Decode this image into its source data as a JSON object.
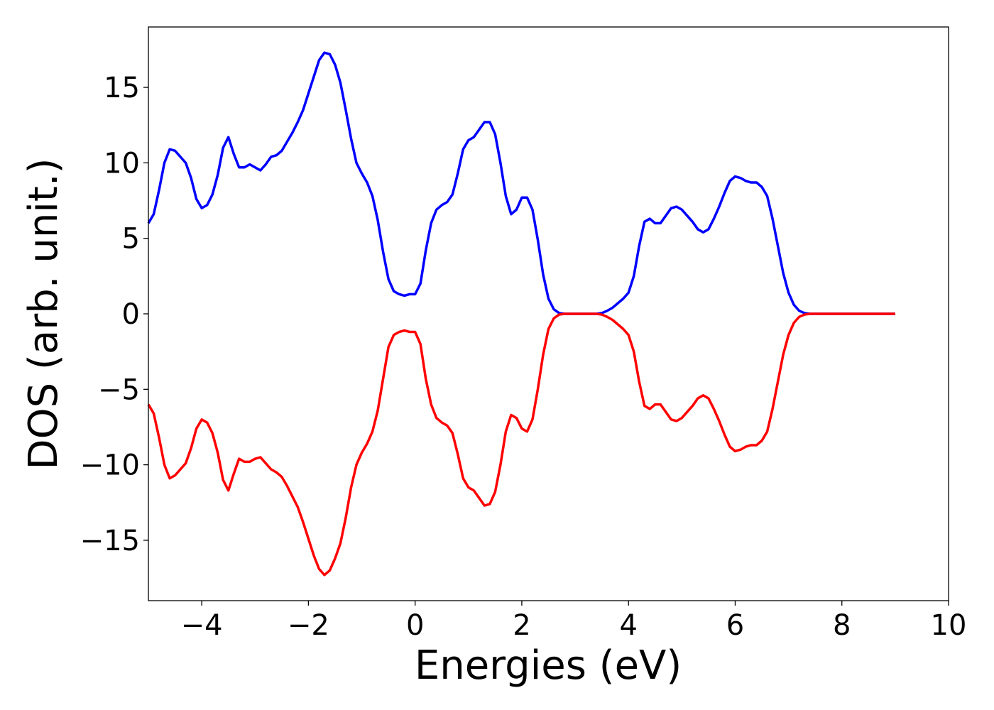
{
  "chart_data": {
    "type": "line",
    "title": "",
    "xlabel": "Energies (eV)",
    "ylabel": "DOS (arb. unit.)",
    "xlim": [
      -5,
      10
    ],
    "ylim": [
      -19,
      19
    ],
    "xticks": [
      -4,
      -2,
      0,
      2,
      4,
      6,
      8,
      10
    ],
    "xtick_labels": [
      "−4",
      "−2",
      "0",
      "2",
      "4",
      "6",
      "8",
      "10"
    ],
    "yticks": [
      -15,
      -10,
      -5,
      0,
      5,
      10,
      15
    ],
    "ytick_labels": [
      "−15",
      "−10",
      "−5",
      "0",
      "5",
      "10",
      "15"
    ],
    "grid": false,
    "legend": "none",
    "series": [
      {
        "color": "#0000ff",
        "x": [
          -5.0,
          -4.9,
          -4.8,
          -4.7,
          -4.6,
          -4.5,
          -4.4,
          -4.3,
          -4.2,
          -4.1,
          -4.0,
          -3.9,
          -3.8,
          -3.7,
          -3.6,
          -3.5,
          -3.4,
          -3.3,
          -3.2,
          -3.1,
          -3.0,
          -2.9,
          -2.8,
          -2.7,
          -2.6,
          -2.5,
          -2.4,
          -2.3,
          -2.2,
          -2.1,
          -2.0,
          -1.9,
          -1.8,
          -1.7,
          -1.6,
          -1.5,
          -1.4,
          -1.3,
          -1.2,
          -1.1,
          -1.0,
          -0.9,
          -0.8,
          -0.7,
          -0.6,
          -0.5,
          -0.4,
          -0.3,
          -0.2,
          -0.1,
          0.0,
          0.1,
          0.2,
          0.3,
          0.4,
          0.5,
          0.6,
          0.7,
          0.8,
          0.9,
          1.0,
          1.1,
          1.2,
          1.3,
          1.4,
          1.5,
          1.6,
          1.7,
          1.8,
          1.9,
          2.0,
          2.1,
          2.2,
          2.3,
          2.4,
          2.5,
          2.6,
          2.7,
          2.8,
          2.9,
          3.0,
          3.2,
          3.4,
          3.5,
          3.6,
          3.7,
          3.8,
          3.9,
          4.0,
          4.1,
          4.2,
          4.3,
          4.4,
          4.5,
          4.6,
          4.7,
          4.8,
          4.9,
          5.0,
          5.1,
          5.2,
          5.3,
          5.4,
          5.5,
          5.6,
          5.7,
          5.8,
          5.9,
          6.0,
          6.1,
          6.2,
          6.3,
          6.4,
          6.5,
          6.6,
          6.7,
          6.8,
          6.9,
          7.0,
          7.1,
          7.2,
          7.3,
          7.4,
          7.6,
          8.0,
          8.5,
          9.0
        ],
        "y": [
          6.0,
          6.6,
          8.2,
          10.0,
          10.9,
          10.8,
          10.4,
          10.0,
          9.0,
          7.6,
          7.0,
          7.2,
          7.9,
          9.2,
          11.0,
          11.7,
          10.6,
          9.7,
          9.7,
          9.9,
          9.7,
          9.5,
          9.9,
          10.4,
          10.5,
          10.8,
          11.4,
          12.0,
          12.7,
          13.5,
          14.6,
          15.7,
          16.8,
          17.3,
          17.2,
          16.5,
          15.3,
          13.5,
          11.6,
          10.0,
          9.3,
          8.7,
          7.8,
          6.2,
          4.1,
          2.3,
          1.5,
          1.3,
          1.2,
          1.3,
          1.3,
          2.0,
          4.2,
          6.0,
          6.9,
          7.2,
          7.4,
          7.9,
          9.3,
          10.9,
          11.5,
          11.7,
          12.2,
          12.7,
          12.7,
          11.9,
          10.0,
          7.8,
          6.6,
          6.9,
          7.7,
          7.7,
          6.9,
          4.9,
          2.6,
          1.0,
          0.3,
          0.05,
          0.0,
          0.0,
          0.0,
          0.0,
          0.0,
          0.05,
          0.2,
          0.4,
          0.7,
          1.0,
          1.4,
          2.5,
          4.5,
          6.1,
          6.3,
          6.0,
          6.0,
          6.5,
          7.0,
          7.1,
          6.9,
          6.5,
          6.1,
          5.6,
          5.4,
          5.6,
          6.3,
          7.1,
          8.0,
          8.8,
          9.1,
          9.0,
          8.8,
          8.7,
          8.7,
          8.4,
          7.8,
          6.3,
          4.5,
          2.7,
          1.4,
          0.6,
          0.2,
          0.05,
          0.0,
          0.0,
          0.0,
          0.0,
          0.0
        ]
      },
      {
        "color": "#ff0000",
        "x": [
          -5.0,
          -4.9,
          -4.8,
          -4.7,
          -4.6,
          -4.5,
          -4.4,
          -4.3,
          -4.2,
          -4.1,
          -4.0,
          -3.9,
          -3.8,
          -3.7,
          -3.6,
          -3.5,
          -3.4,
          -3.3,
          -3.2,
          -3.1,
          -3.0,
          -2.9,
          -2.8,
          -2.7,
          -2.6,
          -2.5,
          -2.4,
          -2.3,
          -2.2,
          -2.1,
          -2.0,
          -1.9,
          -1.8,
          -1.7,
          -1.6,
          -1.5,
          -1.4,
          -1.3,
          -1.2,
          -1.1,
          -1.0,
          -0.9,
          -0.8,
          -0.7,
          -0.6,
          -0.5,
          -0.4,
          -0.3,
          -0.2,
          -0.1,
          0.0,
          0.1,
          0.2,
          0.3,
          0.4,
          0.5,
          0.6,
          0.7,
          0.8,
          0.9,
          1.0,
          1.1,
          1.2,
          1.3,
          1.4,
          1.5,
          1.6,
          1.7,
          1.8,
          1.9,
          2.0,
          2.1,
          2.2,
          2.3,
          2.4,
          2.5,
          2.6,
          2.7,
          2.8,
          2.9,
          3.0,
          3.2,
          3.4,
          3.5,
          3.6,
          3.7,
          3.8,
          3.9,
          4.0,
          4.1,
          4.2,
          4.3,
          4.4,
          4.5,
          4.6,
          4.7,
          4.8,
          4.9,
          5.0,
          5.1,
          5.2,
          5.3,
          5.4,
          5.5,
          5.6,
          5.7,
          5.8,
          5.9,
          6.0,
          6.1,
          6.2,
          6.3,
          6.4,
          6.5,
          6.6,
          6.7,
          6.8,
          6.9,
          7.0,
          7.1,
          7.2,
          7.3,
          7.4,
          7.6,
          8.0,
          8.5,
          9.0
        ],
        "y": [
          -6.0,
          -6.6,
          -8.2,
          -10.0,
          -10.9,
          -10.7,
          -10.3,
          -9.9,
          -8.9,
          -7.6,
          -7.0,
          -7.2,
          -7.9,
          -9.2,
          -11.0,
          -11.7,
          -10.6,
          -9.6,
          -9.8,
          -9.8,
          -9.6,
          -9.5,
          -9.9,
          -10.3,
          -10.5,
          -10.8,
          -11.4,
          -12.1,
          -12.8,
          -13.8,
          -14.9,
          -16.0,
          -16.9,
          -17.3,
          -17.0,
          -16.2,
          -15.2,
          -13.5,
          -11.5,
          -10.0,
          -9.2,
          -8.6,
          -7.8,
          -6.4,
          -4.3,
          -2.2,
          -1.4,
          -1.2,
          -1.1,
          -1.2,
          -1.2,
          -2.0,
          -4.3,
          -6.0,
          -6.9,
          -7.2,
          -7.4,
          -7.9,
          -9.3,
          -10.9,
          -11.5,
          -11.7,
          -12.2,
          -12.7,
          -12.6,
          -11.8,
          -10.0,
          -7.8,
          -6.7,
          -6.9,
          -7.6,
          -7.8,
          -7.0,
          -5.0,
          -2.7,
          -1.0,
          -0.3,
          -0.05,
          0.0,
          0.0,
          0.0,
          0.0,
          0.0,
          -0.05,
          -0.2,
          -0.4,
          -0.7,
          -1.0,
          -1.4,
          -2.5,
          -4.5,
          -6.1,
          -6.3,
          -6.0,
          -6.0,
          -6.5,
          -7.0,
          -7.1,
          -6.9,
          -6.5,
          -6.1,
          -5.6,
          -5.4,
          -5.6,
          -6.3,
          -7.1,
          -8.0,
          -8.8,
          -9.1,
          -9.0,
          -8.8,
          -8.7,
          -8.7,
          -8.4,
          -7.8,
          -6.3,
          -4.5,
          -2.7,
          -1.4,
          -0.6,
          -0.2,
          -0.05,
          0.0,
          0.0,
          0.0,
          0.0,
          0.0
        ]
      }
    ]
  }
}
